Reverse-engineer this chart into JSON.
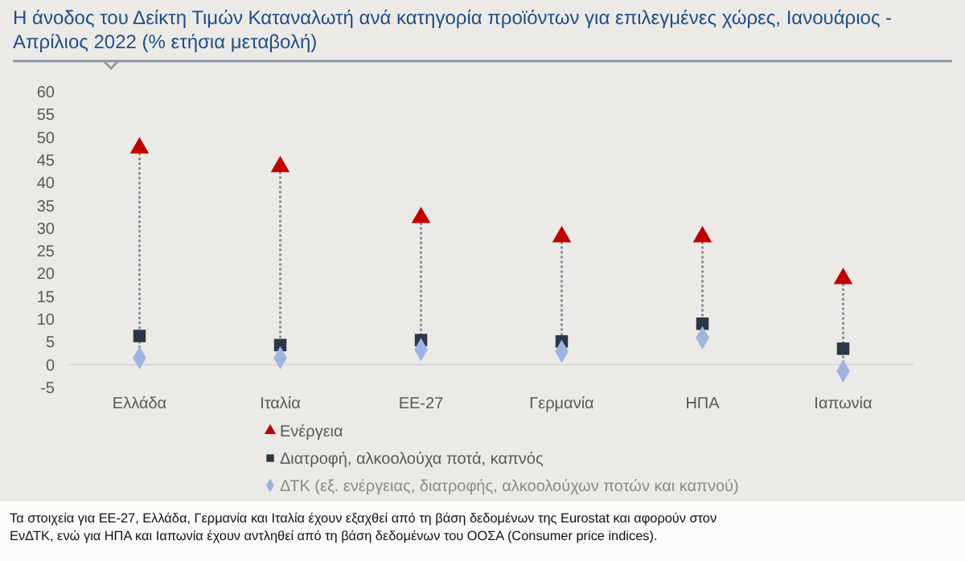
{
  "chart_data": {
    "type": "scatter",
    "title": "Η άνοδος του Δείκτη Τιμών Καταναλωτή ανά κατηγορία προϊόντων για επιλεγμένες χώρες, Ιανουάριος - Απρίλιος 2022 (% ετήσια μεταβολή)",
    "categories": [
      "Ελλάδα",
      "Ιταλία",
      "ΕΕ-27",
      "Γερμανία",
      "ΗΠΑ",
      "Ιαπωνία"
    ],
    "series": [
      {
        "name": "Ενέργεια",
        "color": "#c00000",
        "marker": "triangle",
        "values": [
          47.6,
          43.5,
          32.3,
          28.1,
          28.1,
          18.9
        ]
      },
      {
        "name": "Διατροφή, αλκοολούχα ποτά, καπνός",
        "color": "#2b3648",
        "marker": "square",
        "values": [
          6.3,
          4.3,
          5.4,
          5.1,
          9.0,
          3.5
        ]
      },
      {
        "name": "ΔΤΚ (εξ. ενέργειας, διατροφής, αλκοολούχων ποτών και καπνού)",
        "color": "#9db5e0",
        "marker": "diamond",
        "values": [
          1.5,
          1.5,
          3.3,
          2.9,
          5.9,
          -1.4
        ]
      }
    ],
    "ylim": [
      -5,
      60
    ],
    "yticks": [
      -5,
      0,
      5,
      10,
      15,
      20,
      25,
      30,
      35,
      40,
      45,
      50,
      55,
      60
    ],
    "grid": false,
    "legend": "bottom",
    "annotations": [
      "Τα στοιχεία για ΕΕ-27, Ελλάδα, Γερμανία και Ιταλία έχουν εξαχθεί από τη βάση δεδομένων της Eurostat και αφορούν στον ΕνΔΤΚ, ενώ για ΗΠΑ και Ιαπωνία έχουν αντληθεί από τη βάση δεδομένων του ΟΟΣΑ (Consumer price indices)."
    ]
  }
}
